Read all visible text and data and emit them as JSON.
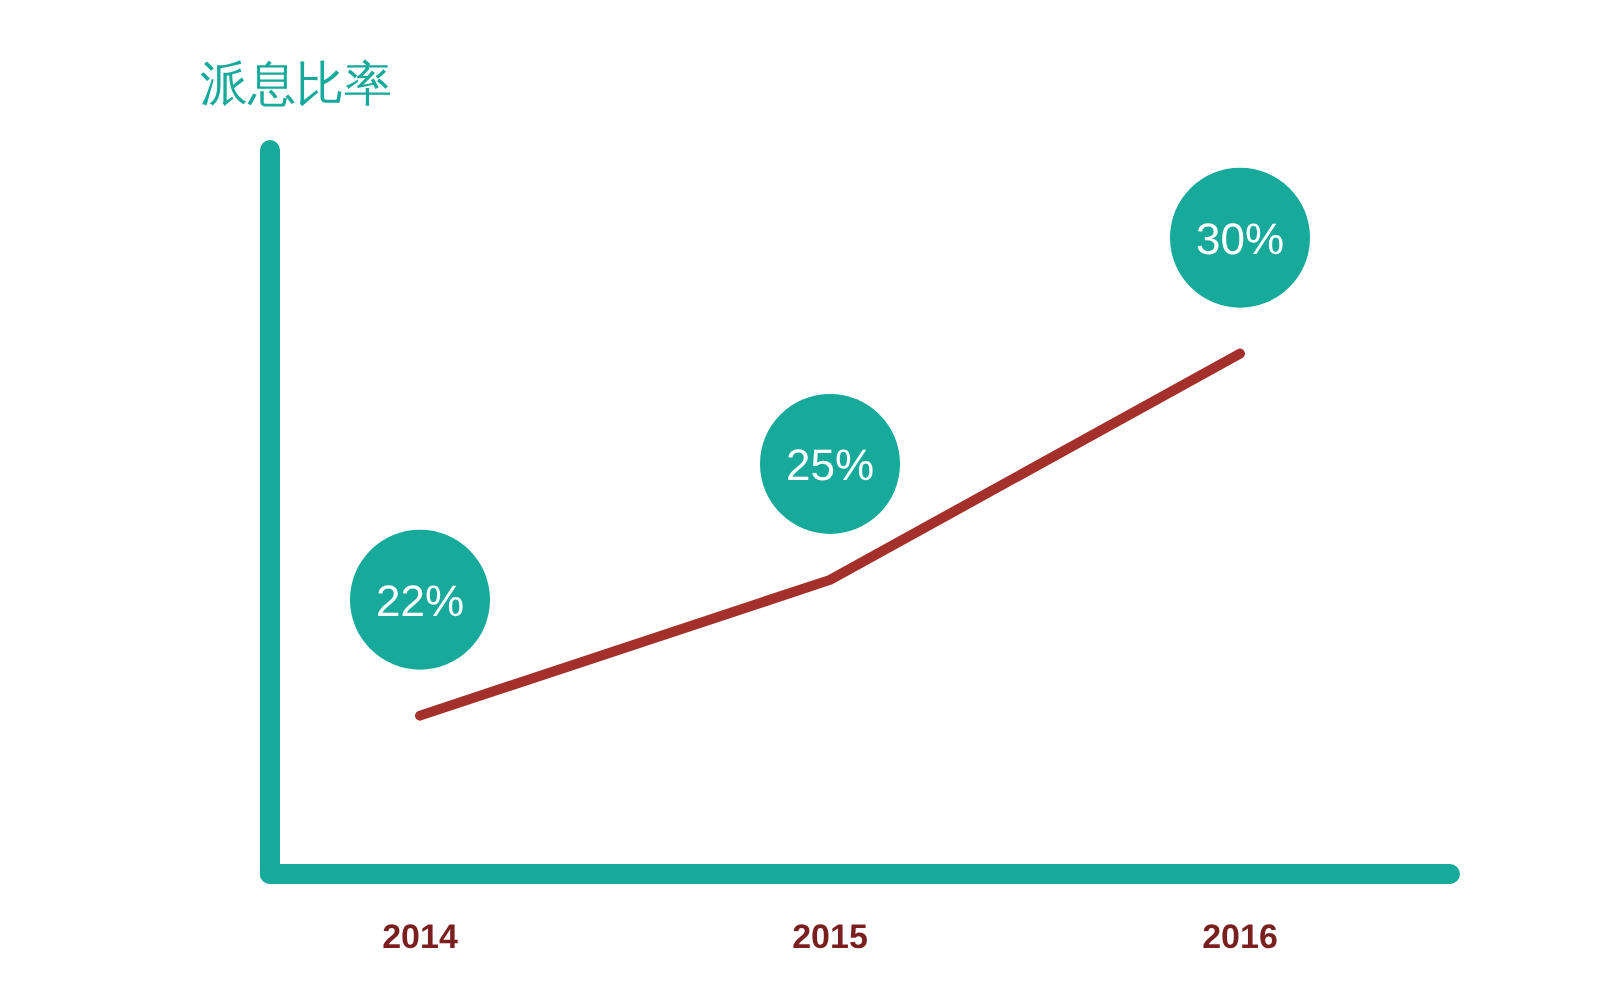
{
  "chart_data": {
    "type": "line",
    "ylabel": "派息比率",
    "categories": [
      "2014",
      "2015",
      "2016"
    ],
    "series": [
      {
        "color": "#a4302c",
        "values": [
          22,
          25,
          30
        ],
        "value_labels": [
          "22%",
          "25%",
          "30%"
        ]
      }
    ],
    "ylim": [
      18.5,
      34.5
    ],
    "tick_labels": "x",
    "marker": "none",
    "line_style": "solid"
  }
}
